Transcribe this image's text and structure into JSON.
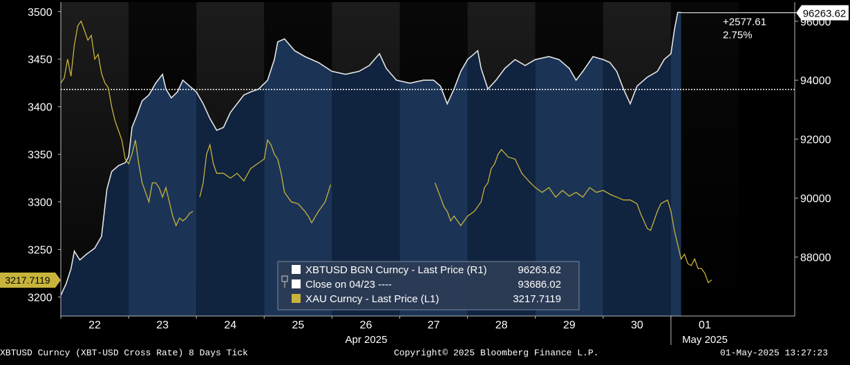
{
  "chart_data": {
    "type": "line",
    "title": "",
    "x_days": [
      "22",
      "23",
      "24",
      "25",
      "26",
      "27",
      "28",
      "29",
      "30",
      "01"
    ],
    "x_group_labels": [
      "Apr 2025",
      "May 2025"
    ],
    "left_axis": {
      "ylim": [
        3180,
        3510
      ],
      "ticks": [
        3200,
        3250,
        3300,
        3350,
        3400,
        3450,
        3500
      ]
    },
    "right_axis": {
      "ylim": [
        86000,
        96650
      ],
      "ticks": [
        88000,
        90000,
        92000,
        94000,
        96000
      ]
    },
    "series": [
      {
        "name": "XBTUSD BGN Curncy - Last Price (R1)",
        "axis": "right",
        "color": "#e6e6e6",
        "last_value": "96263.62",
        "points": [
          [
            0.0,
            86700
          ],
          [
            0.08,
            87100
          ],
          [
            0.15,
            87600
          ],
          [
            0.2,
            88200
          ],
          [
            0.28,
            87900
          ],
          [
            0.38,
            88100
          ],
          [
            0.5,
            88300
          ],
          [
            0.6,
            88700
          ],
          [
            0.68,
            90300
          ],
          [
            0.75,
            90900
          ],
          [
            0.85,
            91100
          ],
          [
            0.95,
            91200
          ],
          [
            1.0,
            91400
          ],
          [
            1.05,
            92400
          ],
          [
            1.12,
            92800
          ],
          [
            1.2,
            93300
          ],
          [
            1.3,
            93500
          ],
          [
            1.4,
            93900
          ],
          [
            1.5,
            94200
          ],
          [
            1.55,
            93700
          ],
          [
            1.63,
            93400
          ],
          [
            1.72,
            93600
          ],
          [
            1.8,
            94000
          ],
          [
            1.9,
            93800
          ],
          [
            2.0,
            93600
          ],
          [
            2.1,
            93200
          ],
          [
            2.2,
            92700
          ],
          [
            2.3,
            92300
          ],
          [
            2.4,
            92400
          ],
          [
            2.5,
            92900
          ],
          [
            2.6,
            93200
          ],
          [
            2.7,
            93500
          ],
          [
            2.8,
            93600
          ],
          [
            2.92,
            93700
          ],
          [
            3.05,
            94000
          ],
          [
            3.15,
            94700
          ],
          [
            3.2,
            95300
          ],
          [
            3.3,
            95400
          ],
          [
            3.45,
            95000
          ],
          [
            3.6,
            94800
          ],
          [
            3.8,
            94600
          ],
          [
            4.0,
            94300
          ],
          [
            4.2,
            94200
          ],
          [
            4.4,
            94300
          ],
          [
            4.55,
            94500
          ],
          [
            4.7,
            94900
          ],
          [
            4.8,
            94400
          ],
          [
            4.95,
            94000
          ],
          [
            5.15,
            93900
          ],
          [
            5.35,
            94000
          ],
          [
            5.5,
            94000
          ],
          [
            5.6,
            93800
          ],
          [
            5.7,
            93200
          ],
          [
            5.8,
            93700
          ],
          [
            5.9,
            94300
          ],
          [
            6.0,
            94700
          ],
          [
            6.1,
            94900
          ],
          [
            6.15,
            95000
          ],
          [
            6.2,
            94400
          ],
          [
            6.3,
            93700
          ],
          [
            6.42,
            94000
          ],
          [
            6.55,
            94400
          ],
          [
            6.7,
            94700
          ],
          [
            6.85,
            94500
          ],
          [
            7.0,
            94700
          ],
          [
            7.2,
            94800
          ],
          [
            7.35,
            94700
          ],
          [
            7.5,
            94400
          ],
          [
            7.6,
            94000
          ],
          [
            7.7,
            94300
          ],
          [
            7.85,
            94800
          ],
          [
            8.0,
            94700
          ],
          [
            8.1,
            94600
          ],
          [
            8.2,
            94300
          ],
          [
            8.3,
            93700
          ],
          [
            8.4,
            93200
          ],
          [
            8.5,
            93800
          ],
          [
            8.65,
            94100
          ],
          [
            8.8,
            94300
          ],
          [
            8.9,
            94700
          ],
          [
            9.0,
            94900
          ],
          [
            9.05,
            95700
          ],
          [
            9.1,
            96300
          ],
          [
            9.15,
            96300
          ]
        ]
      },
      {
        "name": "Close on 04/23 ----",
        "axis": "right",
        "color": "#ffffff",
        "value": "93686.02"
      },
      {
        "name": "XAU Curncy - Last Price (L1)",
        "axis": "left",
        "color": "#c8b43c",
        "last_value": "3217.7119",
        "points": [
          [
            0.0,
            3425
          ],
          [
            0.05,
            3430
          ],
          [
            0.1,
            3450
          ],
          [
            0.15,
            3432
          ],
          [
            0.2,
            3465
          ],
          [
            0.25,
            3485
          ],
          [
            0.3,
            3490
          ],
          [
            0.35,
            3480
          ],
          [
            0.4,
            3470
          ],
          [
            0.45,
            3475
          ],
          [
            0.5,
            3450
          ],
          [
            0.55,
            3455
          ],
          [
            0.6,
            3435
          ],
          [
            0.65,
            3425
          ],
          [
            0.7,
            3420
          ],
          [
            0.75,
            3400
          ],
          [
            0.8,
            3385
          ],
          [
            0.85,
            3375
          ],
          [
            0.9,
            3365
          ],
          [
            0.95,
            3345
          ],
          [
            1.0,
            3340
          ],
          [
            1.05,
            3350
          ],
          [
            1.1,
            3365
          ],
          [
            1.15,
            3340
          ],
          [
            1.2,
            3320
          ],
          [
            1.25,
            3310
          ],
          [
            1.3,
            3300
          ],
          [
            1.35,
            3320
          ],
          [
            1.4,
            3320
          ],
          [
            1.45,
            3315
          ],
          [
            1.5,
            3305
          ],
          [
            1.55,
            3315
          ],
          [
            1.6,
            3300
          ],
          [
            1.65,
            3285
          ],
          [
            1.7,
            3275
          ],
          [
            1.75,
            3283
          ],
          [
            1.8,
            3280
          ],
          [
            1.85,
            3283
          ],
          [
            1.9,
            3288
          ],
          [
            1.95,
            3290
          ],
          "gap",
          [
            2.05,
            3305
          ],
          [
            2.1,
            3320
          ],
          [
            2.15,
            3350
          ],
          [
            2.2,
            3360
          ],
          [
            2.25,
            3340
          ],
          [
            2.3,
            3330
          ],
          [
            2.4,
            3330
          ],
          [
            2.5,
            3325
          ],
          [
            2.6,
            3330
          ],
          [
            2.7,
            3322
          ],
          [
            2.8,
            3335
          ],
          [
            2.9,
            3340
          ],
          [
            3.0,
            3345
          ],
          [
            3.05,
            3365
          ],
          [
            3.1,
            3360
          ],
          [
            3.15,
            3350
          ],
          [
            3.2,
            3345
          ],
          [
            3.25,
            3330
          ],
          [
            3.3,
            3310
          ],
          [
            3.35,
            3305
          ],
          [
            3.4,
            3300
          ],
          [
            3.5,
            3298
          ],
          [
            3.6,
            3290
          ],
          [
            3.65,
            3285
          ],
          [
            3.7,
            3278
          ],
          [
            3.8,
            3290
          ],
          [
            3.9,
            3300
          ],
          [
            3.98,
            3318
          ],
          "gap",
          [
            5.52,
            3320
          ],
          [
            5.6,
            3305
          ],
          [
            5.65,
            3295
          ],
          [
            5.7,
            3290
          ],
          [
            5.75,
            3280
          ],
          [
            5.8,
            3285
          ],
          [
            5.9,
            3275
          ],
          [
            6.0,
            3285
          ],
          [
            6.1,
            3290
          ],
          [
            6.2,
            3300
          ],
          [
            6.25,
            3315
          ],
          [
            6.3,
            3320
          ],
          [
            6.35,
            3335
          ],
          [
            6.4,
            3340
          ],
          [
            6.45,
            3350
          ],
          [
            6.5,
            3355
          ],
          [
            6.6,
            3347
          ],
          [
            6.7,
            3345
          ],
          [
            6.8,
            3330
          ],
          [
            6.9,
            3322
          ],
          [
            7.0,
            3315
          ],
          [
            7.1,
            3310
          ],
          [
            7.2,
            3315
          ],
          [
            7.3,
            3305
          ],
          [
            7.4,
            3312
          ],
          [
            7.5,
            3306
          ],
          [
            7.6,
            3310
          ],
          [
            7.7,
            3305
          ],
          [
            7.8,
            3315
          ],
          [
            7.9,
            3310
          ],
          [
            8.0,
            3312
          ],
          [
            8.1,
            3308
          ],
          [
            8.2,
            3305
          ],
          [
            8.3,
            3302
          ],
          [
            8.4,
            3302
          ],
          [
            8.5,
            3298
          ],
          [
            8.55,
            3288
          ],
          [
            8.6,
            3280
          ],
          [
            8.65,
            3272
          ],
          [
            8.7,
            3270
          ],
          [
            8.75,
            3280
          ],
          [
            8.8,
            3290
          ],
          [
            8.85,
            3298
          ],
          [
            8.9,
            3300
          ],
          [
            8.95,
            3302
          ],
          [
            9.0,
            3290
          ],
          [
            9.05,
            3270
          ],
          [
            9.1,
            3255
          ],
          [
            9.15,
            3240
          ],
          [
            9.2,
            3245
          ],
          [
            9.25,
            3235
          ],
          [
            9.3,
            3233
          ],
          [
            9.35,
            3240
          ],
          [
            9.4,
            3230
          ],
          [
            9.45,
            3230
          ],
          [
            9.5,
            3225
          ],
          [
            9.55,
            3215
          ],
          [
            9.6,
            3218
          ]
        ]
      }
    ],
    "annotations": {
      "last_value_right": "96263.62",
      "last_value_left": "3217.7119",
      "change_abs": "+2577.61",
      "change_pct": "2.75%"
    },
    "legend": {
      "placement": "bottom-center",
      "rows": [
        {
          "label": "XBTUSD BGN Curncy - Last Price (R1)",
          "value": "96263.62"
        },
        {
          "label": "Close on 04/23 ----",
          "value": "93686.02"
        },
        {
          "label": "XAU Curncy - Last Price (L1)",
          "value": "3217.7119"
        }
      ]
    }
  },
  "footer": {
    "left": "XBTUSD Curncy (XBT-USD Cross Rate) 8 Days  Tick",
    "center": "Copyright© 2025 Bloomberg Finance L.P.",
    "right": "01-May-2025 13:27:23"
  },
  "colors": {
    "background": "#000000",
    "band_dark_top": "#1c1c1c",
    "band_light_top": "#080808",
    "area_dark": "#10233f",
    "area_light": "#1b3456",
    "gold": "#c8b43c",
    "white": "#ffffff"
  }
}
